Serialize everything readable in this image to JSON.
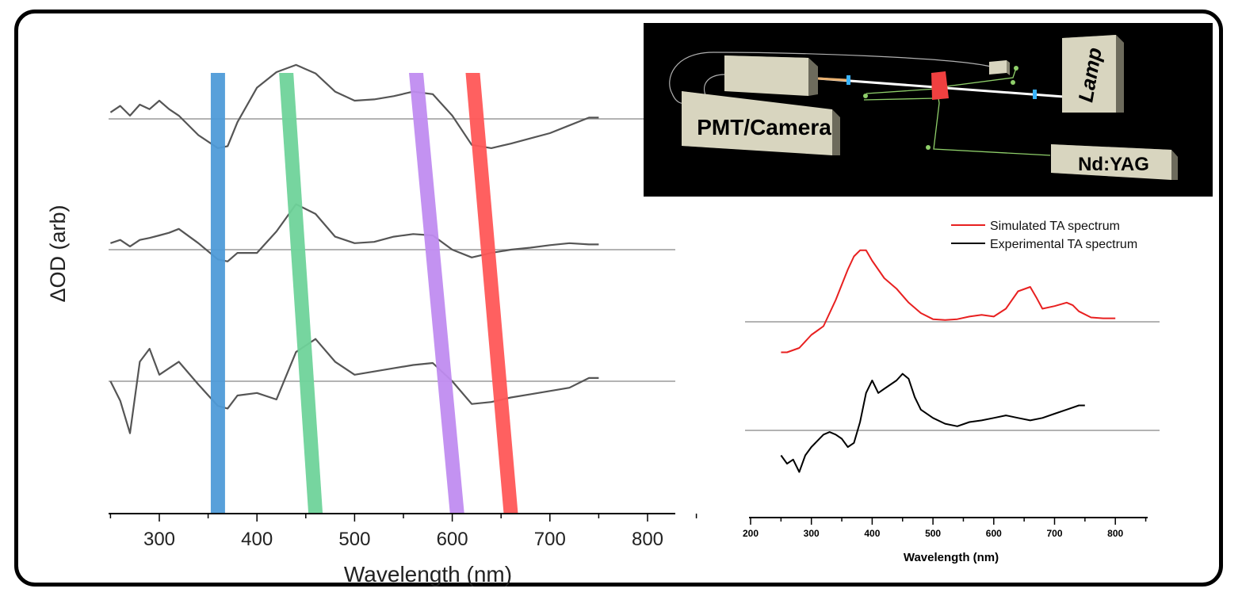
{
  "colors": {
    "trace": "#555555",
    "baseline": "#9a9a9a",
    "band_blue": "#4f9bd8",
    "band_green": "#6fd39a",
    "band_purple": "#c08cf0",
    "band_red": "#ff5757",
    "sim": "#e82020",
    "exp": "#000000",
    "setup_bg": "#000000",
    "box": "#d8d5bf",
    "sample": "#f04040",
    "beam": "#ffffff",
    "fiber": "#b0b0b0",
    "path": "#8fcf6a",
    "marker": "#3ab4ff"
  },
  "chart_data": [
    {
      "type": "line",
      "title": "",
      "xlabel": "Wavelength (nm)",
      "ylabel": "ΔOD (arb)",
      "xlim": [
        250,
        830
      ],
      "xticks": [
        300,
        400,
        500,
        600,
        700,
        800
      ],
      "grid": false,
      "series": [
        {
          "name": "top trace",
          "offset": 0,
          "x": [
            250,
            260,
            270,
            280,
            290,
            300,
            310,
            320,
            340,
            360,
            370,
            380,
            400,
            420,
            440,
            460,
            480,
            500,
            520,
            540,
            560,
            580,
            600,
            620,
            640,
            660,
            680,
            700,
            720,
            740,
            750
          ],
          "y": [
            0.1,
            0.2,
            0.05,
            0.22,
            0.15,
            0.28,
            0.15,
            0.05,
            -0.25,
            -0.45,
            -0.42,
            -0.05,
            0.48,
            0.72,
            0.83,
            0.7,
            0.42,
            0.28,
            0.3,
            0.35,
            0.42,
            0.38,
            0.05,
            -0.4,
            -0.45,
            -0.38,
            -0.3,
            -0.22,
            -0.1,
            0.02,
            0.02
          ]
        },
        {
          "name": "middle trace",
          "offset": 0,
          "x": [
            250,
            260,
            270,
            280,
            290,
            300,
            310,
            320,
            340,
            360,
            370,
            380,
            400,
            420,
            440,
            460,
            480,
            500,
            520,
            540,
            560,
            580,
            600,
            620,
            640,
            660,
            680,
            700,
            720,
            740,
            750
          ],
          "y": [
            0.1,
            0.15,
            0.05,
            0.15,
            0.18,
            0.22,
            0.26,
            0.32,
            0.1,
            -0.15,
            -0.18,
            -0.05,
            -0.05,
            0.28,
            0.7,
            0.55,
            0.2,
            0.1,
            0.12,
            0.2,
            0.24,
            0.22,
            0.0,
            -0.12,
            -0.05,
            0.0,
            0.03,
            0.07,
            0.1,
            0.08,
            0.08
          ]
        },
        {
          "name": "bottom trace",
          "offset": 0,
          "x": [
            250,
            260,
            270,
            280,
            290,
            300,
            310,
            320,
            340,
            360,
            370,
            380,
            400,
            420,
            440,
            460,
            480,
            500,
            520,
            540,
            560,
            580,
            600,
            620,
            640,
            660,
            680,
            700,
            720,
            740,
            750
          ],
          "y": [
            0.0,
            -0.3,
            -0.8,
            0.3,
            0.5,
            0.1,
            0.2,
            0.3,
            -0.05,
            -0.38,
            -0.42,
            -0.22,
            -0.18,
            -0.28,
            0.45,
            0.65,
            0.3,
            0.1,
            0.15,
            0.2,
            0.25,
            0.28,
            0.0,
            -0.35,
            -0.32,
            -0.25,
            -0.2,
            -0.15,
            -0.1,
            0.05,
            0.05
          ]
        }
      ],
      "bands": [
        {
          "name": "blue band",
          "x_top": 360,
          "x_bottom": 360,
          "color": "#4f9bd8"
        },
        {
          "name": "green band",
          "x_top": 430,
          "x_bottom": 460,
          "color": "#6fd39a"
        },
        {
          "name": "purple band",
          "x_top": 563,
          "x_bottom": 605,
          "color": "#c08cf0"
        },
        {
          "name": "red band",
          "x_top": 621,
          "x_bottom": 660,
          "color": "#ff5757"
        }
      ]
    },
    {
      "type": "line",
      "title": "",
      "xlabel": "Wavelength (nm)",
      "ylabel": "",
      "xlim": [
        200,
        850
      ],
      "xticks": [
        200,
        300,
        400,
        500,
        600,
        700,
        800
      ],
      "grid": false,
      "legend": {
        "position": "top-right",
        "entries": [
          "Simulated TA spectrum",
          "Experimental TA spectrum"
        ]
      },
      "series": [
        {
          "name": "Simulated TA spectrum",
          "color": "#e82020",
          "x": [
            250,
            260,
            280,
            300,
            310,
            320,
            340,
            360,
            370,
            380,
            390,
            400,
            420,
            440,
            460,
            480,
            500,
            520,
            540,
            560,
            580,
            600,
            620,
            640,
            660,
            670,
            680,
            700,
            720,
            730,
            740,
            760,
            780,
            800
          ],
          "y": [
            -0.35,
            -0.35,
            -0.3,
            -0.15,
            -0.1,
            -0.05,
            0.25,
            0.6,
            0.75,
            0.82,
            0.82,
            0.7,
            0.5,
            0.38,
            0.22,
            0.1,
            0.03,
            0.02,
            0.03,
            0.06,
            0.08,
            0.06,
            0.15,
            0.35,
            0.4,
            0.28,
            0.15,
            0.18,
            0.22,
            0.19,
            0.12,
            0.05,
            0.04,
            0.04
          ]
        },
        {
          "name": "Experimental TA spectrum",
          "color": "#000000",
          "x": [
            250,
            260,
            270,
            280,
            290,
            300,
            320,
            330,
            340,
            350,
            360,
            370,
            380,
            390,
            400,
            410,
            420,
            440,
            450,
            460,
            470,
            480,
            500,
            520,
            540,
            560,
            580,
            600,
            620,
            640,
            660,
            680,
            700,
            720,
            740,
            750
          ],
          "y": [
            -0.3,
            -0.4,
            -0.35,
            -0.5,
            -0.3,
            -0.2,
            -0.05,
            -0.02,
            -0.05,
            -0.1,
            -0.2,
            -0.15,
            0.1,
            0.45,
            0.6,
            0.45,
            0.5,
            0.6,
            0.68,
            0.62,
            0.4,
            0.25,
            0.15,
            0.08,
            0.05,
            0.1,
            0.12,
            0.15,
            0.18,
            0.15,
            0.12,
            0.15,
            0.2,
            0.25,
            0.3,
            0.3
          ]
        }
      ]
    }
  ],
  "setup": {
    "labels": {
      "detector": "PMT/Camera",
      "lamp": "Lamp",
      "laser": "Nd:YAG"
    }
  }
}
